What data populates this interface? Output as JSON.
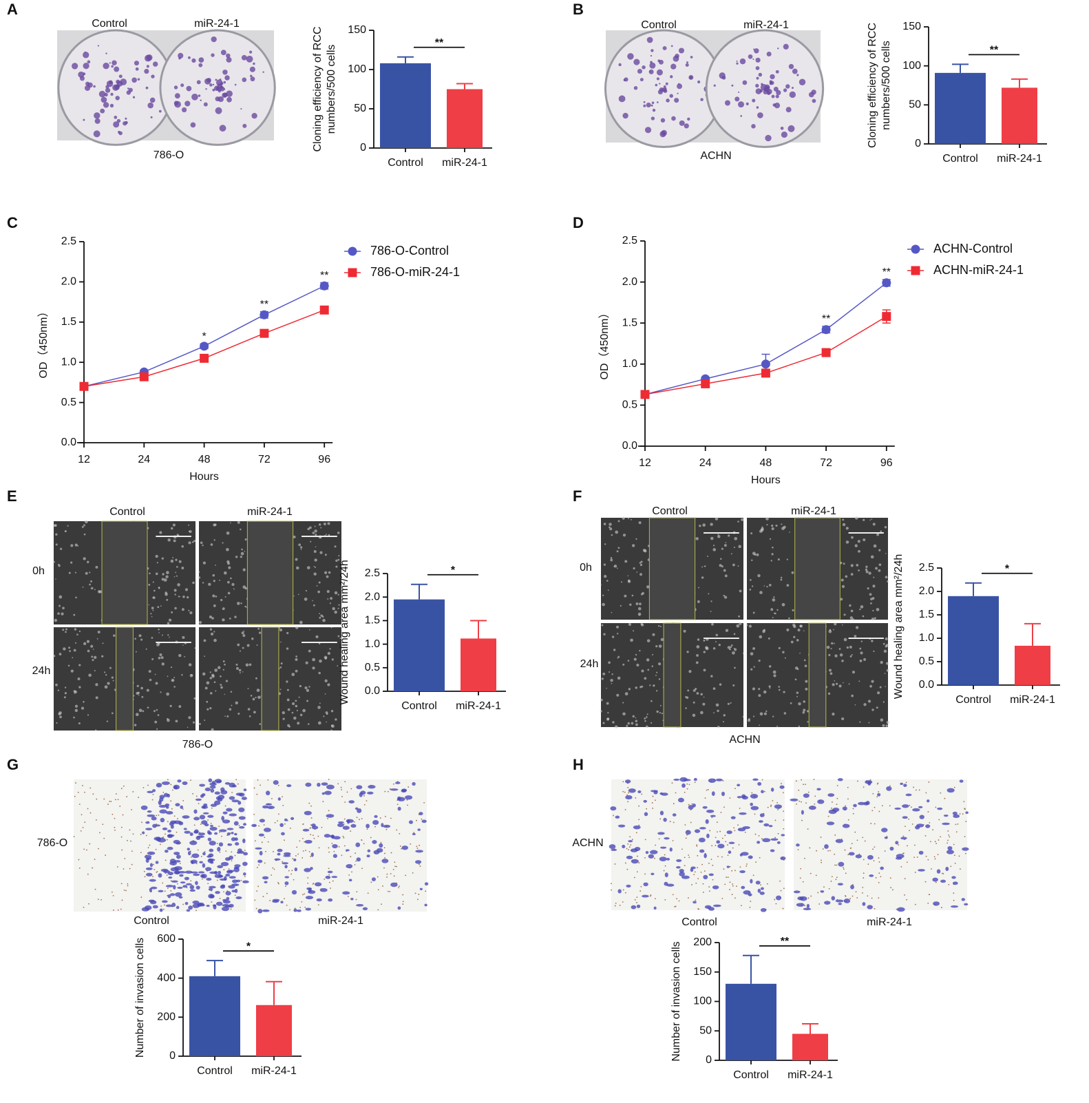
{
  "figure": {
    "panel_letters": [
      "A",
      "B",
      "C",
      "D",
      "E",
      "F",
      "G",
      "H"
    ],
    "image_labels": [
      "Control",
      "miR-24-1",
      "786-O",
      "Control",
      "miR-24-1",
      "ACHN",
      "Control",
      "miR-24-1",
      "0h",
      "24h",
      "786-O",
      "Control",
      "miR-24-1",
      "0h",
      "24h",
      "ACHN",
      "786-O",
      "Control",
      "miR-24-1",
      "ACHN",
      "Control",
      "miR-24-1"
    ]
  },
  "chart_data": [
    {
      "type": "bar",
      "ylabel": [
        "Cloning efficiency of RCC",
        "numbers/500 cells"
      ],
      "categories": [
        "Control",
        "miR-24-1"
      ],
      "values": [
        108,
        75
      ],
      "errors": [
        8,
        7
      ],
      "colors": [
        "#3953a4",
        "#ef3e46"
      ],
      "ylim": [
        0,
        150
      ],
      "yticks": [
        0,
        50,
        100,
        150
      ],
      "annotation": "**"
    },
    {
      "type": "bar",
      "ylabel": [
        "Cloning efficiency of RCC",
        "numbers/500 cells"
      ],
      "categories": [
        "Control",
        "miR-24-1"
      ],
      "values": [
        91,
        72
      ],
      "errors": [
        11,
        11
      ],
      "colors": [
        "#3953a4",
        "#ef3e46"
      ],
      "ylim": [
        0,
        150
      ],
      "yticks": [
        0,
        50,
        100,
        150
      ],
      "annotation": "**"
    },
    {
      "type": "line",
      "xlabel": "Hours",
      "ylabel": "OD（450nm）",
      "categories": [
        "12",
        "24",
        "48",
        "72",
        "96"
      ],
      "series": [
        {
          "name": "786-O-Control",
          "color": "#5558c4",
          "marker": "circle",
          "values": [
            0.7,
            0.88,
            1.2,
            1.59,
            1.95
          ],
          "errors": [
            0.03,
            0.02,
            0.03,
            0.04,
            0.04
          ]
        },
        {
          "name": "786-O-miR-24-1",
          "color": "#ee2b33",
          "marker": "square",
          "values": [
            0.7,
            0.82,
            1.05,
            1.36,
            1.65
          ],
          "errors": [
            0.02,
            0.02,
            0.03,
            0.03,
            0.04
          ]
        }
      ],
      "annotations": [
        null,
        null,
        "*",
        "**",
        "**"
      ],
      "ylim": [
        0,
        2.5
      ],
      "yticks": [
        {
          "value": 0,
          "label": "0.0"
        },
        {
          "value": 0.5,
          "label": "0.5"
        },
        {
          "value": 1,
          "label": "1.0"
        },
        {
          "value": 1.5,
          "label": "1.5"
        },
        {
          "value": 2,
          "label": "2.0"
        },
        {
          "value": 2.5,
          "label": "2.5"
        }
      ]
    },
    {
      "type": "line",
      "xlabel": "Hours",
      "ylabel": "OD（450nm）",
      "categories": [
        "12",
        "24",
        "48",
        "72",
        "96"
      ],
      "series": [
        {
          "name": "ACHN-Control",
          "color": "#5558c4",
          "marker": "circle",
          "values": [
            0.63,
            0.82,
            1.0,
            1.42,
            1.99
          ],
          "errors": [
            0.02,
            0.02,
            0.12,
            0.04,
            0.04
          ]
        },
        {
          "name": "ACHN-miR-24-1",
          "color": "#ee2b33",
          "marker": "square",
          "values": [
            0.63,
            0.76,
            0.89,
            1.14,
            1.58
          ],
          "errors": [
            0.02,
            0.02,
            0.03,
            0.03,
            0.08
          ]
        }
      ],
      "annotations": [
        null,
        null,
        null,
        "**",
        "**"
      ],
      "ylim": [
        0,
        2.5
      ],
      "yticks": [
        {
          "value": 0,
          "label": "0.0"
        },
        {
          "value": 0.5,
          "label": "0.5"
        },
        {
          "value": 1,
          "label": "1.0"
        },
        {
          "value": 1.5,
          "label": "1.5"
        },
        {
          "value": 2,
          "label": "2.0"
        },
        {
          "value": 2.5,
          "label": "2.5"
        }
      ]
    },
    {
      "type": "bar",
      "ylabel": "Wound healing area mm²/24h",
      "categories": [
        "Control",
        "miR-24-1"
      ],
      "values": [
        1.95,
        1.12
      ],
      "errors": [
        0.32,
        0.38
      ],
      "colors": [
        "#3953a4",
        "#ef3e46"
      ],
      "ylim": [
        0,
        2.5
      ],
      "yticks": [
        {
          "value": 0,
          "label": "0.0"
        },
        {
          "value": 0.5,
          "label": "0.5"
        },
        {
          "value": 1,
          "label": "1.0"
        },
        {
          "value": 1.5,
          "label": "1.5"
        },
        {
          "value": 2,
          "label": "2.0"
        },
        {
          "value": 2.5,
          "label": "2.5"
        }
      ],
      "annotation": "*"
    },
    {
      "type": "bar",
      "ylabel": "Wound healing area mm²/24h",
      "categories": [
        "Control",
        "miR-24-1"
      ],
      "values": [
        1.9,
        0.84
      ],
      "errors": [
        0.28,
        0.47
      ],
      "colors": [
        "#3953a4",
        "#ef3e46"
      ],
      "ylim": [
        0,
        2.5
      ],
      "yticks": [
        {
          "value": 0,
          "label": "0.0"
        },
        {
          "value": 0.5,
          "label": "0.5"
        },
        {
          "value": 1,
          "label": "1.0"
        },
        {
          "value": 1.5,
          "label": "1.5"
        },
        {
          "value": 2,
          "label": "2.0"
        },
        {
          "value": 2.5,
          "label": "2.5"
        }
      ],
      "annotation": "*"
    },
    {
      "type": "bar",
      "ylabel": "Number of invasion cells",
      "categories": [
        "Control",
        "miR-24-1"
      ],
      "values": [
        410,
        262
      ],
      "errors": [
        80,
        120
      ],
      "colors": [
        "#3953a4",
        "#ef3e46"
      ],
      "ylim": [
        0,
        600
      ],
      "yticks": [
        0,
        200,
        400,
        600
      ],
      "annotation": "*"
    },
    {
      "type": "bar",
      "ylabel": "Number of invasion cells",
      "categories": [
        "Control",
        "miR-24-1"
      ],
      "values": [
        130,
        45
      ],
      "errors": [
        48,
        17
      ],
      "colors": [
        "#3953a4",
        "#ef3e46"
      ],
      "ylim": [
        0,
        200
      ],
      "yticks": [
        0,
        50,
        100,
        150,
        200
      ],
      "annotation": "**"
    }
  ]
}
